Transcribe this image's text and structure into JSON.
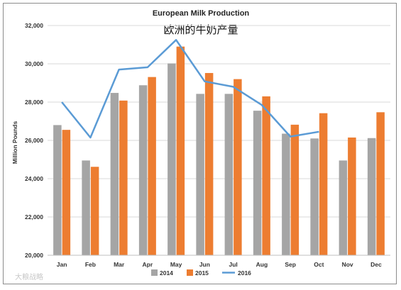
{
  "chart_data": {
    "type": "bar",
    "title": "European Milk Production",
    "subtitle": "欧洲的牛奶产量",
    "xlabel": "",
    "ylabel": "Million Pounds",
    "categories": [
      "Jan",
      "Feb",
      "Mar",
      "Apr",
      "May",
      "Jun",
      "Jul",
      "Aug",
      "Sep",
      "Oct",
      "Nov",
      "Dec"
    ],
    "ylim": [
      20000,
      32000
    ],
    "yticks": [
      20000,
      22000,
      24000,
      26000,
      28000,
      30000,
      32000
    ],
    "ytick_labels": [
      "20,000",
      "22,000",
      "24,000",
      "26,000",
      "28,000",
      "30,000",
      "32,000"
    ],
    "grid": true,
    "legend_position": "bottom",
    "series": [
      {
        "name": "2014",
        "kind": "bar",
        "color": "#a5a5a5",
        "values": [
          26800,
          24950,
          28480,
          28880,
          30020,
          28430,
          28430,
          27550,
          26350,
          26100,
          24950,
          26120
        ]
      },
      {
        "name": "2015",
        "kind": "bar",
        "color": "#ed7d31",
        "values": [
          26550,
          24620,
          28080,
          29310,
          30900,
          29520,
          29200,
          28300,
          26820,
          27420,
          26150,
          27470
        ]
      },
      {
        "name": "2016",
        "kind": "line",
        "color": "#5b9bd5",
        "values": [
          28000,
          26150,
          29700,
          29820,
          31250,
          29080,
          28800,
          27850,
          26200,
          26450,
          null,
          null
        ]
      }
    ]
  },
  "watermark": "大粮战略"
}
